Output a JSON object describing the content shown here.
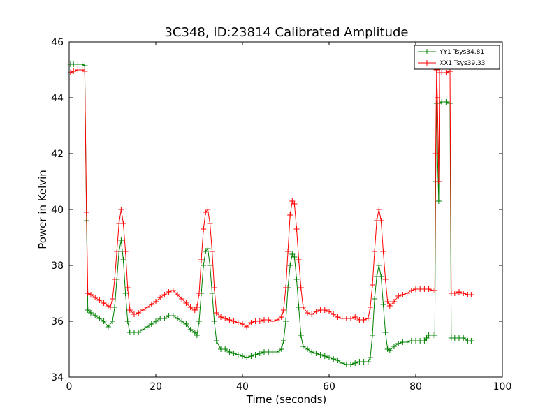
{
  "chart_data": {
    "type": "line",
    "title": "3C348, ID:23814 Calibrated Amplitude",
    "xlabel": "Time (seconds)",
    "ylabel": "Power in Kelvin",
    "xlim": [
      0,
      100
    ],
    "ylim": [
      34,
      46
    ],
    "xticks": [
      0,
      20,
      40,
      60,
      80,
      100
    ],
    "yticks": [
      34,
      36,
      38,
      40,
      42,
      44,
      46
    ],
    "xtick_labels": [
      "0",
      "20",
      "40",
      "60",
      "80",
      "100"
    ],
    "ytick_labels": [
      "34",
      "36",
      "38",
      "40",
      "42",
      "44",
      "46"
    ],
    "grid": false,
    "legend_position": "top-right",
    "marker": "+",
    "series": [
      {
        "name": "YY1 Tsys34.81",
        "color": "#008000",
        "points": [
          [
            0.3,
            45.2
          ],
          [
            1.0,
            45.2
          ],
          [
            2.0,
            45.2
          ],
          [
            3.0,
            45.2
          ],
          [
            3.6,
            45.15
          ],
          [
            4.0,
            39.6
          ],
          [
            4.3,
            36.4
          ],
          [
            5,
            36.3
          ],
          [
            6,
            36.2
          ],
          [
            7,
            36.1
          ],
          [
            8,
            36.0
          ],
          [
            9,
            35.8
          ],
          [
            10,
            36.0
          ],
          [
            10.5,
            36.5
          ],
          [
            11,
            37.5
          ],
          [
            11.5,
            38.5
          ],
          [
            12,
            38.9
          ],
          [
            12.5,
            38.2
          ],
          [
            13,
            37.0
          ],
          [
            13.5,
            36.0
          ],
          [
            14,
            35.6
          ],
          [
            15,
            35.6
          ],
          [
            16,
            35.6
          ],
          [
            17,
            35.7
          ],
          [
            18,
            35.8
          ],
          [
            19,
            35.9
          ],
          [
            20,
            36.0
          ],
          [
            21,
            36.1
          ],
          [
            22,
            36.1
          ],
          [
            23,
            36.2
          ],
          [
            24,
            36.2
          ],
          [
            25,
            36.1
          ],
          [
            26,
            36.0
          ],
          [
            27,
            35.9
          ],
          [
            28,
            35.7
          ],
          [
            29,
            35.6
          ],
          [
            29.5,
            35.5
          ],
          [
            30,
            36.0
          ],
          [
            30.5,
            37.0
          ],
          [
            31,
            38.0
          ],
          [
            31.5,
            38.5
          ],
          [
            32,
            38.6
          ],
          [
            32.5,
            38.0
          ],
          [
            33,
            37.0
          ],
          [
            33.5,
            36.0
          ],
          [
            34,
            35.3
          ],
          [
            35,
            35.0
          ],
          [
            36,
            35.0
          ],
          [
            37,
            34.9
          ],
          [
            38,
            34.85
          ],
          [
            39,
            34.8
          ],
          [
            40,
            34.75
          ],
          [
            41,
            34.7
          ],
          [
            42,
            34.75
          ],
          [
            43,
            34.8
          ],
          [
            44,
            34.85
          ],
          [
            45,
            34.9
          ],
          [
            46,
            34.9
          ],
          [
            47,
            34.9
          ],
          [
            48,
            34.9
          ],
          [
            49,
            35.0
          ],
          [
            49.5,
            35.3
          ],
          [
            50,
            36.0
          ],
          [
            50.5,
            37.2
          ],
          [
            51,
            38.0
          ],
          [
            51.5,
            38.4
          ],
          [
            52,
            38.3
          ],
          [
            52.5,
            37.5
          ],
          [
            53,
            36.5
          ],
          [
            53.5,
            35.5
          ],
          [
            54,
            35.1
          ],
          [
            55,
            35.0
          ],
          [
            56,
            34.9
          ],
          [
            57,
            34.85
          ],
          [
            58,
            34.8
          ],
          [
            59,
            34.75
          ],
          [
            60,
            34.7
          ],
          [
            61,
            34.65
          ],
          [
            62,
            34.6
          ],
          [
            63,
            34.5
          ],
          [
            64,
            34.45
          ],
          [
            65,
            34.45
          ],
          [
            66,
            34.5
          ],
          [
            67,
            34.55
          ],
          [
            68,
            34.55
          ],
          [
            69,
            34.55
          ],
          [
            69.5,
            34.7
          ],
          [
            70,
            35.5
          ],
          [
            70.5,
            36.8
          ],
          [
            71,
            37.6
          ],
          [
            71.5,
            38.0
          ],
          [
            72,
            37.6
          ],
          [
            72.5,
            36.6
          ],
          [
            73,
            35.6
          ],
          [
            73.5,
            35.0
          ],
          [
            74,
            34.95
          ],
          [
            75,
            35.1
          ],
          [
            76,
            35.2
          ],
          [
            77,
            35.25
          ],
          [
            78,
            35.25
          ],
          [
            79,
            35.3
          ],
          [
            80,
            35.3
          ],
          [
            81,
            35.3
          ],
          [
            82,
            35.3
          ],
          [
            82.5,
            35.4
          ],
          [
            83,
            35.5
          ],
          [
            84,
            35.5
          ],
          [
            84.4,
            35.5
          ],
          [
            84.6,
            41.0
          ],
          [
            84.8,
            43.8
          ],
          [
            85.0,
            42.0
          ],
          [
            85.3,
            40.3
          ],
          [
            85.5,
            43.8
          ],
          [
            86,
            43.85
          ],
          [
            87,
            43.85
          ],
          [
            87.9,
            43.8
          ],
          [
            88.2,
            35.4
          ],
          [
            89,
            35.4
          ],
          [
            90,
            35.4
          ],
          [
            91,
            35.4
          ],
          [
            92,
            35.3
          ],
          [
            92.8,
            35.3
          ]
        ]
      },
      {
        "name": "XX1 Tsys39.33",
        "color": "#ff0000",
        "points": [
          [
            0.3,
            44.9
          ],
          [
            1.0,
            44.95
          ],
          [
            2.0,
            45.0
          ],
          [
            3.0,
            45.0
          ],
          [
            3.6,
            44.95
          ],
          [
            4.0,
            39.9
          ],
          [
            4.3,
            37.0
          ],
          [
            5,
            36.95
          ],
          [
            6,
            36.85
          ],
          [
            7,
            36.75
          ],
          [
            8,
            36.65
          ],
          [
            9,
            36.55
          ],
          [
            9.5,
            36.5
          ],
          [
            10,
            36.8
          ],
          [
            10.5,
            37.5
          ],
          [
            11,
            38.5
          ],
          [
            11.5,
            39.5
          ],
          [
            12,
            40.0
          ],
          [
            12.5,
            39.5
          ],
          [
            13,
            38.5
          ],
          [
            13.5,
            37.2
          ],
          [
            14,
            36.4
          ],
          [
            15,
            36.25
          ],
          [
            16,
            36.3
          ],
          [
            17,
            36.4
          ],
          [
            18,
            36.5
          ],
          [
            19,
            36.6
          ],
          [
            20,
            36.7
          ],
          [
            21,
            36.85
          ],
          [
            22,
            36.95
          ],
          [
            23,
            37.05
          ],
          [
            24,
            37.1
          ],
          [
            25,
            36.95
          ],
          [
            26,
            36.8
          ],
          [
            27,
            36.65
          ],
          [
            28,
            36.5
          ],
          [
            29,
            36.4
          ],
          [
            29.5,
            36.5
          ],
          [
            30,
            37.0
          ],
          [
            30.5,
            38.2
          ],
          [
            31,
            39.3
          ],
          [
            31.5,
            39.9
          ],
          [
            32,
            40.0
          ],
          [
            32.5,
            39.5
          ],
          [
            33,
            38.5
          ],
          [
            33.5,
            37.2
          ],
          [
            34,
            36.3
          ],
          [
            35,
            36.15
          ],
          [
            36,
            36.1
          ],
          [
            37,
            36.05
          ],
          [
            38,
            36.0
          ],
          [
            39,
            35.95
          ],
          [
            40,
            35.9
          ],
          [
            41,
            35.8
          ],
          [
            42,
            35.95
          ],
          [
            43,
            36.0
          ],
          [
            44,
            36.0
          ],
          [
            45,
            36.05
          ],
          [
            46,
            36.05
          ],
          [
            47,
            36.0
          ],
          [
            48,
            36.05
          ],
          [
            49,
            36.15
          ],
          [
            49.5,
            36.4
          ],
          [
            50,
            37.2
          ],
          [
            50.5,
            38.5
          ],
          [
            51,
            39.8
          ],
          [
            51.5,
            40.3
          ],
          [
            52,
            40.2
          ],
          [
            52.5,
            39.3
          ],
          [
            53,
            38.2
          ],
          [
            53.5,
            37.2
          ],
          [
            54,
            36.5
          ],
          [
            55,
            36.3
          ],
          [
            56,
            36.25
          ],
          [
            57,
            36.35
          ],
          [
            58,
            36.4
          ],
          [
            59,
            36.4
          ],
          [
            60,
            36.35
          ],
          [
            61,
            36.25
          ],
          [
            62,
            36.15
          ],
          [
            63,
            36.1
          ],
          [
            64,
            36.1
          ],
          [
            65,
            36.1
          ],
          [
            66,
            36.15
          ],
          [
            67,
            36.05
          ],
          [
            68,
            36.05
          ],
          [
            69,
            36.1
          ],
          [
            69.5,
            36.5
          ],
          [
            70,
            37.3
          ],
          [
            70.5,
            38.5
          ],
          [
            71,
            39.6
          ],
          [
            71.5,
            40.0
          ],
          [
            72,
            39.6
          ],
          [
            72.5,
            38.5
          ],
          [
            73,
            37.5
          ],
          [
            73.5,
            36.7
          ],
          [
            74,
            36.55
          ],
          [
            75,
            36.7
          ],
          [
            76,
            36.9
          ],
          [
            77,
            36.95
          ],
          [
            78,
            37.0
          ],
          [
            79,
            37.1
          ],
          [
            80,
            37.15
          ],
          [
            81,
            37.15
          ],
          [
            82,
            37.15
          ],
          [
            83,
            37.15
          ],
          [
            84,
            37.1
          ],
          [
            84.4,
            37.1
          ],
          [
            84.6,
            42.0
          ],
          [
            84.8,
            45.0
          ],
          [
            85.0,
            44.0
          ],
          [
            85.3,
            41.0
          ],
          [
            85.5,
            44.9
          ],
          [
            86,
            44.9
          ],
          [
            87,
            44.9
          ],
          [
            87.9,
            44.95
          ],
          [
            88.2,
            37.0
          ],
          [
            89,
            37.0
          ],
          [
            90,
            37.05
          ],
          [
            91,
            37.0
          ],
          [
            92,
            36.95
          ],
          [
            92.8,
            36.95
          ]
        ]
      }
    ]
  }
}
